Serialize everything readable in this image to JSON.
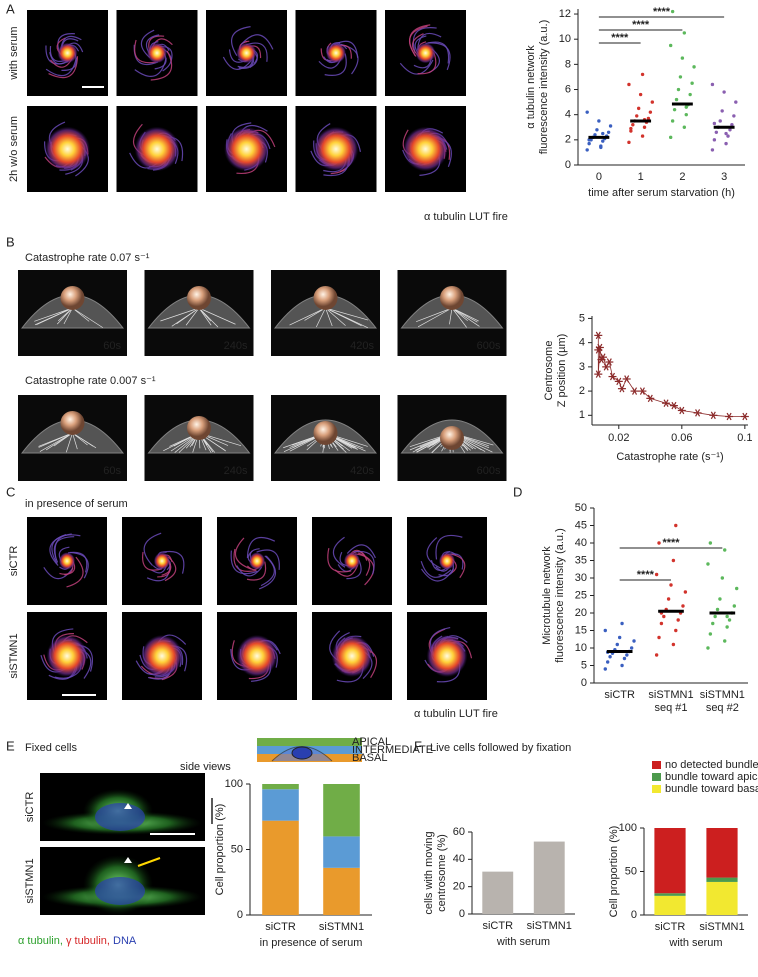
{
  "panels": {
    "A": {
      "label": "A",
      "rows": [
        "with serum",
        "2h w/o serum"
      ],
      "caption": "α tubulin LUT fire"
    },
    "B": {
      "label": "B",
      "rows": [
        {
          "title": "Catastrophe rate 0.07 s⁻¹",
          "times": [
            "60s",
            "240s",
            "420s",
            "600s"
          ]
        },
        {
          "title": "Catastrophe rate 0.007 s⁻¹",
          "times": [
            "60s",
            "240s",
            "420s",
            "600s"
          ]
        }
      ]
    },
    "C": {
      "label": "C",
      "subtitle": "in presence of serum",
      "rows": [
        "siCTR",
        "siSTMN1"
      ],
      "caption": "α tubulin LUT fire"
    },
    "D": {
      "label": "D"
    },
    "E": {
      "label": "E",
      "title": "Fixed cells",
      "note": "side views",
      "rows": [
        "siCTR",
        "siSTMN1"
      ],
      "stain": [
        "α tubulin,",
        "γ tubulin,",
        "DNA"
      ]
    },
    "F": {
      "label": "F",
      "title": "Live cells followed by fixation"
    }
  },
  "chart_data": [
    {
      "type": "strip",
      "ylabel": [
        "α tubulin network",
        "fluorescence intensity (a.u.)"
      ],
      "xlabel": "time after serum starvation (h)",
      "categories": [
        "0",
        "1",
        "2",
        "3"
      ],
      "values": [
        2.2,
        3.5,
        4.85,
        3.0
      ],
      "colors": [
        "#3a5fc0",
        "#d2332c",
        "#5cb85c",
        "#8a5fb0"
      ],
      "points": [
        [
          1.2,
          1.5,
          1.7,
          1.9,
          2.0,
          2.1,
          2.2,
          2.3,
          2.4,
          2.6,
          2.8,
          3.1,
          3.5,
          4.2,
          1.4,
          2.0,
          2.5
        ],
        [
          1.8,
          2.3,
          2.7,
          3.0,
          3.2,
          3.4,
          3.5,
          3.7,
          3.9,
          4.2,
          4.5,
          5.0,
          5.6,
          6.4,
          7.2,
          2.9,
          3.6
        ],
        [
          2.2,
          3.0,
          3.5,
          4.0,
          4.4,
          4.8,
          5.2,
          5.6,
          6.0,
          6.5,
          7.0,
          7.8,
          8.5,
          9.5,
          10.5,
          12.2,
          4.6
        ],
        [
          1.2,
          1.7,
          2.0,
          2.3,
          2.6,
          2.8,
          3.0,
          3.2,
          3.5,
          3.9,
          4.3,
          5.0,
          5.8,
          6.4,
          2.5,
          3.3
        ]
      ],
      "annotations": [
        {
          "text": "****",
          "between": [
            "0",
            "3"
          ]
        },
        {
          "text": "****",
          "between": [
            "0",
            "2"
          ]
        },
        {
          "text": "****",
          "between": [
            "0",
            "1"
          ]
        }
      ],
      "ylim": [
        0,
        12.4
      ],
      "yticks": [
        0,
        2,
        4,
        6,
        8,
        10,
        12
      ]
    },
    {
      "type": "scatter",
      "ylabel": [
        "Centrosome",
        "Z position (µm)"
      ],
      "xlabel": "Catastrophe rate (s⁻¹)",
      "color": "#8b2a2a",
      "x": [
        0.007,
        0.007,
        0.007,
        0.008,
        0.009,
        0.01,
        0.012,
        0.014,
        0.016,
        0.02,
        0.022,
        0.025,
        0.03,
        0.035,
        0.04,
        0.05,
        0.055,
        0.06,
        0.07,
        0.08,
        0.09,
        0.1
      ],
      "values": [
        4.3,
        3.7,
        2.7,
        3.8,
        3.3,
        3.4,
        3.0,
        3.2,
        2.6,
        2.4,
        2.1,
        2.5,
        2.0,
        2.0,
        1.7,
        1.5,
        1.4,
        1.2,
        1.1,
        1.0,
        0.95,
        0.95
      ],
      "xlim": [
        0.003,
        0.102
      ],
      "xticks": [
        0.02,
        0.06,
        0.1
      ],
      "ylim": [
        0.6,
        5.1
      ],
      "yticks": [
        1,
        2,
        3,
        4,
        5
      ]
    },
    {
      "type": "strip",
      "ylabel": [
        "Microtubule network",
        "fluorescence intensity (a.u.)"
      ],
      "categories": [
        "siCTR",
        "siSTMN1 seq #1",
        "siSTMN1 seq #2"
      ],
      "values": [
        9,
        20.5,
        20
      ],
      "colors": [
        "#3a5fc0",
        "#d2332c",
        "#5cb85c"
      ],
      "points": [
        [
          4,
          5,
          6,
          7,
          7.5,
          8,
          8.5,
          9,
          9.5,
          10,
          11,
          12,
          13,
          15,
          17,
          8.8
        ],
        [
          8,
          11,
          13,
          15,
          17,
          18,
          19,
          20,
          21,
          22,
          24,
          26,
          28,
          31,
          35,
          40,
          45,
          20
        ],
        [
          10,
          12,
          14,
          16,
          17,
          18,
          19,
          20,
          21,
          22,
          24,
          27,
          30,
          34,
          38,
          40,
          19
        ]
      ],
      "annotations": [
        {
          "text": "****",
          "between": [
            "siCTR",
            "siSTMN1 seq #2"
          ]
        },
        {
          "text": "****",
          "between": [
            "siCTR",
            "siSTMN1 seq #1"
          ]
        }
      ],
      "ylim": [
        0,
        50
      ],
      "yticks": [
        0,
        5,
        10,
        15,
        20,
        25,
        30,
        35,
        40,
        45,
        50
      ]
    },
    {
      "type": "stacked-bar",
      "ylabel": [
        "Cell proportion (%)"
      ],
      "xlabel": "in presence of serum",
      "legend": "graphic",
      "categories": [
        "siCTR",
        "siSTMN1"
      ],
      "series": [
        {
          "name": "BASAL",
          "color": "#e99a2c",
          "values": [
            72,
            36
          ]
        },
        {
          "name": "INTERMEDIATE",
          "color": "#5b9bd5",
          "values": [
            24,
            24
          ]
        },
        {
          "name": "APICAL",
          "color": "#70ad47",
          "values": [
            4,
            40
          ]
        }
      ],
      "ylim": [
        0,
        100
      ],
      "yticks": [
        0,
        50,
        100
      ]
    },
    {
      "type": "bar",
      "ylabel": [
        "cells with moving",
        "centrosome (%)"
      ],
      "xlabel": "with serum",
      "color": "#b8b3ae",
      "categories": [
        "siCTR",
        "siSTMN1"
      ],
      "values": [
        31,
        53
      ],
      "ylim": [
        0,
        60
      ],
      "yticks": [
        0,
        20,
        40,
        60
      ]
    },
    {
      "type": "stacked-bar",
      "ylabel": [
        "Cell proportion (%)"
      ],
      "xlabel": "with serum",
      "legend": "top",
      "categories": [
        "siCTR",
        "siSTMN1"
      ],
      "series": [
        {
          "name": "bundle toward basal pole",
          "color": "#f2e830",
          "values": [
            22,
            38
          ]
        },
        {
          "name": "bundle toward apical pole",
          "color": "#4c9a4c",
          "values": [
            3,
            5
          ]
        },
        {
          "name": "no detected bundle",
          "color": "#cc1f1f",
          "values": [
            75,
            57
          ]
        }
      ],
      "ylim": [
        0,
        100
      ],
      "yticks": [
        0,
        50,
        100
      ]
    }
  ]
}
